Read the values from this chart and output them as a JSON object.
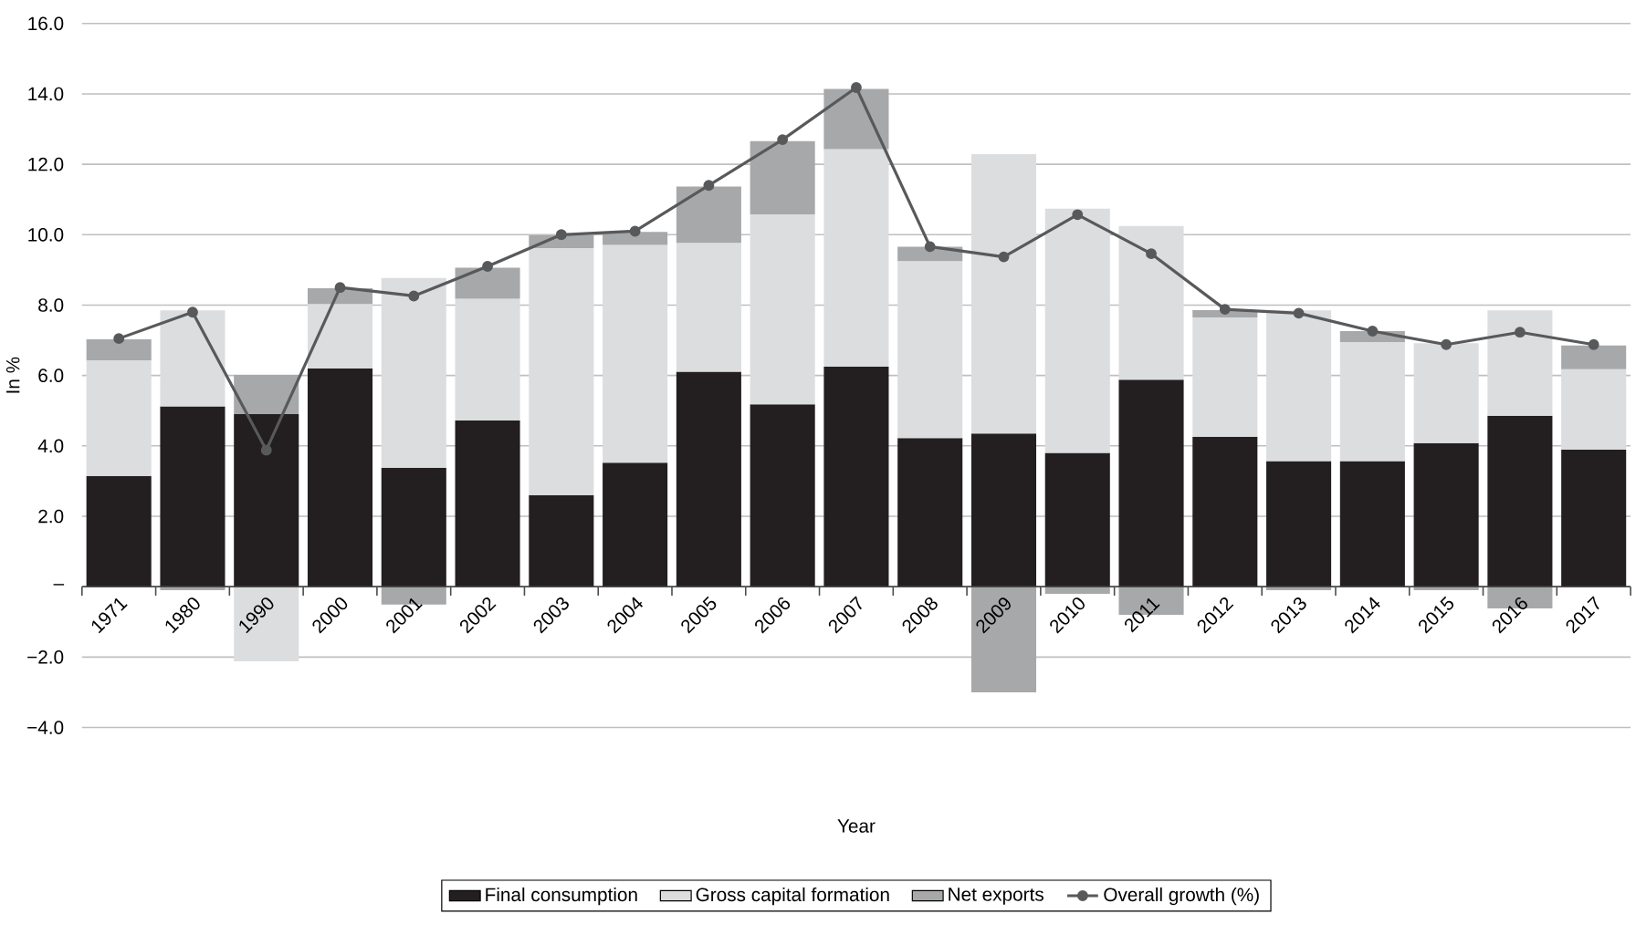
{
  "chart_data": {
    "type": "bar",
    "stacked": true,
    "xlabel": "Year",
    "ylabel": "In %",
    "categories": [
      "1971",
      "1980",
      "1990",
      "2000",
      "2001",
      "2002",
      "2003",
      "2004",
      "2005",
      "2006",
      "2007",
      "2008",
      "2009",
      "2010",
      "2011",
      "2012",
      "2013",
      "2014",
      "2015",
      "2016",
      "2017"
    ],
    "ylim": [
      -4,
      16
    ],
    "yticks": [
      {
        "value": -4,
        "label": "−4.0"
      },
      {
        "value": -2,
        "label": "−2.0"
      },
      {
        "value": 0,
        "label": "–"
      },
      {
        "value": 2,
        "label": "2.0"
      },
      {
        "value": 4,
        "label": "4.0"
      },
      {
        "value": 6,
        "label": "6.0"
      },
      {
        "value": 8,
        "label": "8.0"
      },
      {
        "value": 10,
        "label": "10.0"
      },
      {
        "value": 12,
        "label": "12.0"
      },
      {
        "value": 14,
        "label": "14.0"
      },
      {
        "value": 16,
        "label": "16.0"
      }
    ],
    "grid": "y",
    "legend": "bottom",
    "series": [
      {
        "name": "Final consumption",
        "color": "#231f20",
        "values": [
          3.15,
          5.12,
          4.9,
          6.2,
          3.38,
          4.72,
          2.6,
          3.52,
          6.11,
          5.18,
          6.25,
          4.22,
          4.35,
          3.8,
          5.88,
          4.26,
          3.57,
          3.57,
          4.08,
          4.86,
          3.89
        ]
      },
      {
        "name": "Gross capital formation",
        "color": "#dcdddf",
        "values": [
          3.28,
          2.73,
          -2.12,
          1.83,
          5.39,
          3.46,
          7.02,
          6.19,
          3.66,
          5.4,
          6.18,
          5.03,
          7.94,
          6.94,
          4.37,
          3.39,
          4.28,
          3.38,
          2.84,
          2.99,
          2.29
        ]
      },
      {
        "name": "Net exports",
        "color": "#a7a8aa",
        "values": [
          0.6,
          -0.1,
          1.12,
          0.45,
          -0.51,
          0.88,
          0.36,
          0.37,
          1.6,
          2.08,
          1.71,
          0.41,
          -3.0,
          -0.2,
          -0.8,
          0.21,
          -0.1,
          0.31,
          -0.1,
          -0.62,
          0.67
        ]
      },
      {
        "name": "Overall growth (%)",
        "type": "line",
        "marker": "circle",
        "color": "#58595b",
        "values": [
          7.05,
          7.8,
          3.88,
          8.5,
          8.26,
          9.1,
          10.0,
          10.1,
          11.4,
          12.7,
          14.18,
          9.66,
          9.37,
          10.57,
          9.46,
          7.88,
          7.77,
          7.26,
          6.88,
          7.23,
          6.88
        ]
      }
    ]
  }
}
